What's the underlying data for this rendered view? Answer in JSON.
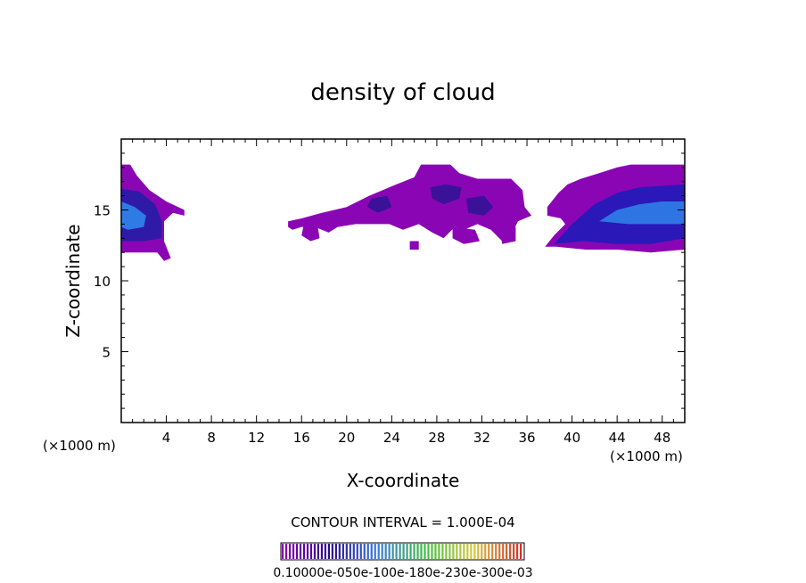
{
  "chart_data": {
    "type": "heatmap",
    "title": "density of cloud",
    "xlabel": "X-coordinate",
    "ylabel": "Z-coordinate",
    "x_unit_left": "(×1000 m)",
    "x_unit_right": "(×1000 m)",
    "xlim": [
      0,
      50
    ],
    "ylim": [
      0,
      20
    ],
    "xticks": [
      4,
      8,
      12,
      16,
      20,
      24,
      28,
      32,
      36,
      40,
      44,
      48
    ],
    "xtick_labels": [
      "4",
      "8",
      "12",
      "16",
      "20",
      "24",
      "28",
      "32",
      "36",
      "40",
      "44",
      "48"
    ],
    "yticks": [
      5,
      10,
      15
    ],
    "ytick_labels": [
      "5",
      "10",
      "15"
    ],
    "contour_interval_text": "CONTOUR INTERVAL = 1.000E-04",
    "colorbar_labels_text": "0.10000e-050e-100e-180e-230e-300e-03",
    "colorbar_colors": [
      "#8a00b0",
      "#2a0a8c",
      "#3a7adf",
      "#3fbf3f",
      "#d8c840",
      "#d0302a"
    ],
    "regions": [
      {
        "name": "west cloud",
        "points": [
          [
            0,
            18.2
          ],
          [
            0.8,
            18.2
          ],
          [
            1.4,
            17.4
          ],
          [
            2.5,
            16.4
          ],
          [
            4.0,
            15.6
          ],
          [
            5.6,
            15.0
          ],
          [
            5.6,
            14.6
          ],
          [
            4.6,
            14.8
          ],
          [
            3.8,
            14.2
          ],
          [
            3.8,
            12.8
          ],
          [
            4.4,
            11.6
          ],
          [
            3.8,
            11.4
          ],
          [
            3.2,
            12.0
          ],
          [
            2.2,
            12.0
          ],
          [
            0.6,
            12.0
          ],
          [
            0,
            12.0
          ]
        ]
      },
      {
        "name": "west core",
        "points": [
          [
            0,
            16.5
          ],
          [
            1.6,
            16.3
          ],
          [
            3.0,
            15.4
          ],
          [
            3.6,
            14.2
          ],
          [
            3.6,
            13.0
          ],
          [
            2.0,
            12.8
          ],
          [
            0,
            12.8
          ]
        ]
      },
      {
        "name": "west inner",
        "points": [
          [
            0,
            15.6
          ],
          [
            1.2,
            15.2
          ],
          [
            2.2,
            14.6
          ],
          [
            2.0,
            13.8
          ],
          [
            0.6,
            13.6
          ],
          [
            0,
            13.8
          ]
        ]
      },
      {
        "name": "central cloud",
        "points": [
          [
            14.8,
            14.2
          ],
          [
            16.0,
            14.4
          ],
          [
            17.8,
            14.8
          ],
          [
            20.0,
            15.2
          ],
          [
            22.0,
            16.0
          ],
          [
            24.4,
            16.8
          ],
          [
            26.0,
            17.3
          ],
          [
            26.6,
            18.2
          ],
          [
            29.2,
            18.2
          ],
          [
            30.0,
            17.6
          ],
          [
            31.6,
            17.2
          ],
          [
            34.6,
            17.2
          ],
          [
            35.6,
            16.4
          ],
          [
            35.8,
            15.2
          ],
          [
            36.4,
            14.6
          ],
          [
            35.2,
            14.2
          ],
          [
            34.6,
            13.2
          ],
          [
            33.8,
            12.8
          ],
          [
            32.8,
            13.6
          ],
          [
            31.6,
            14.0
          ],
          [
            30.4,
            13.6
          ],
          [
            29.6,
            13.8
          ],
          [
            28.6,
            13.0
          ],
          [
            27.6,
            13.4
          ],
          [
            26.4,
            14.0
          ],
          [
            25.0,
            13.6
          ],
          [
            23.8,
            14.0
          ],
          [
            22.4,
            14.0
          ],
          [
            20.8,
            14.0
          ],
          [
            19.2,
            13.8
          ],
          [
            18.4,
            13.4
          ],
          [
            17.2,
            13.8
          ],
          [
            16.0,
            13.8
          ],
          [
            15.2,
            13.6
          ],
          [
            14.8,
            13.8
          ]
        ]
      },
      {
        "name": "central blob small",
        "points": [
          [
            16.2,
            14.0
          ],
          [
            17.4,
            14.0
          ],
          [
            17.6,
            13.0
          ],
          [
            16.8,
            12.8
          ],
          [
            16.0,
            13.2
          ]
        ]
      },
      {
        "name": "central lower blob",
        "points": [
          [
            29.4,
            13.8
          ],
          [
            31.4,
            13.6
          ],
          [
            31.8,
            12.8
          ],
          [
            30.4,
            12.6
          ],
          [
            29.4,
            13.0
          ]
        ]
      },
      {
        "name": "central lower blob 2",
        "points": [
          [
            33.6,
            13.8
          ],
          [
            35.0,
            13.8
          ],
          [
            35.0,
            12.8
          ],
          [
            33.8,
            12.6
          ]
        ]
      },
      {
        "name": "central dot",
        "points": [
          [
            25.6,
            12.8
          ],
          [
            26.4,
            12.8
          ],
          [
            26.4,
            12.2
          ],
          [
            25.6,
            12.2
          ]
        ]
      },
      {
        "name": "central dark 1",
        "points": [
          [
            22.2,
            15.8
          ],
          [
            23.6,
            16.0
          ],
          [
            24.0,
            15.2
          ],
          [
            22.8,
            14.8
          ],
          [
            21.8,
            15.2
          ]
        ]
      },
      {
        "name": "central dark 2",
        "points": [
          [
            27.4,
            16.6
          ],
          [
            28.8,
            16.8
          ],
          [
            30.2,
            16.6
          ],
          [
            30.0,
            15.8
          ],
          [
            28.6,
            15.4
          ],
          [
            27.6,
            15.8
          ]
        ]
      },
      {
        "name": "central dark 3",
        "points": [
          [
            30.6,
            15.8
          ],
          [
            32.2,
            16.0
          ],
          [
            33.0,
            15.2
          ],
          [
            32.2,
            14.6
          ],
          [
            30.8,
            14.8
          ]
        ]
      },
      {
        "name": "east cloud",
        "points": [
          [
            37.6,
            12.4
          ],
          [
            38.4,
            13.2
          ],
          [
            39.4,
            14.0
          ],
          [
            39.0,
            14.4
          ],
          [
            37.8,
            14.6
          ],
          [
            37.8,
            15.2
          ],
          [
            38.8,
            16.2
          ],
          [
            39.6,
            16.8
          ],
          [
            40.8,
            17.2
          ],
          [
            42.4,
            17.6
          ],
          [
            44.0,
            18.0
          ],
          [
            45.2,
            18.2
          ],
          [
            50,
            18.2
          ],
          [
            50,
            12.2
          ],
          [
            47.0,
            12.0
          ],
          [
            44.0,
            12.2
          ],
          [
            41.2,
            12.2
          ],
          [
            38.6,
            12.4
          ]
        ]
      },
      {
        "name": "east core",
        "points": [
          [
            38.4,
            12.6
          ],
          [
            40.0,
            14.0
          ],
          [
            42.0,
            15.4
          ],
          [
            44.0,
            16.2
          ],
          [
            46.0,
            16.6
          ],
          [
            50,
            16.8
          ],
          [
            50,
            13.0
          ],
          [
            47,
            12.6
          ],
          [
            44,
            12.6
          ],
          [
            41,
            12.8
          ]
        ]
      },
      {
        "name": "east inner",
        "points": [
          [
            42.4,
            14.2
          ],
          [
            44.0,
            15.0
          ],
          [
            46.0,
            15.4
          ],
          [
            48.0,
            15.6
          ],
          [
            50,
            15.6
          ],
          [
            50,
            14.0
          ],
          [
            47,
            14.0
          ],
          [
            45,
            14.0
          ]
        ]
      }
    ]
  }
}
